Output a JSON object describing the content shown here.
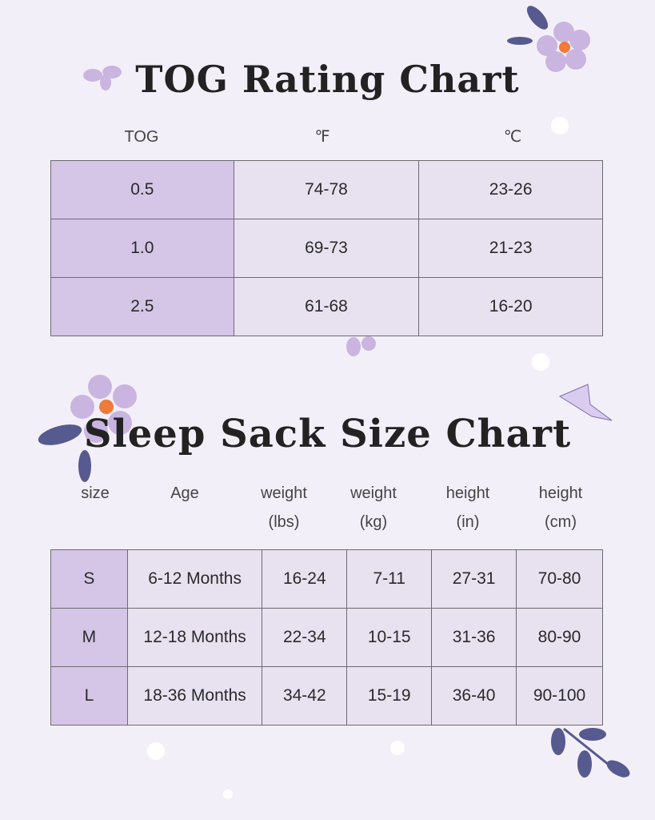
{
  "tog_chart": {
    "title": "TOG Rating Chart",
    "headers": [
      "TOG",
      "℉",
      "℃"
    ],
    "rows": [
      [
        "0.5",
        "74-78",
        "23-26"
      ],
      [
        "1.0",
        "69-73",
        "21-23"
      ],
      [
        "2.5",
        "61-68",
        "16-20"
      ]
    ]
  },
  "size_chart": {
    "title": "Sleep Sack Size Chart",
    "headers": [
      [
        "size"
      ],
      [
        "Age"
      ],
      [
        "weight",
        "(lbs)"
      ],
      [
        "weight",
        "(kg)"
      ],
      [
        "height",
        "(in)"
      ],
      [
        "height",
        "(cm)"
      ]
    ],
    "rows": [
      [
        "S",
        "6-12 Months",
        "16-24",
        "7-11",
        "27-31",
        "70-80"
      ],
      [
        "M",
        "12-18 Months",
        "22-34",
        "10-15",
        "31-36",
        "80-90"
      ],
      [
        "L",
        "18-36 Months",
        "34-42",
        "15-19",
        "36-40",
        "90-100"
      ]
    ]
  }
}
